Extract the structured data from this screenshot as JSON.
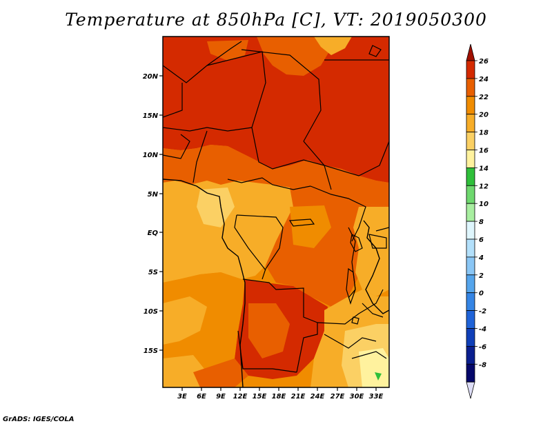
{
  "title": "Temperature at 850hPa [C], VT: 2019050300",
  "credit": "GrADS: IGES/COLA",
  "map": {
    "variable": "Temperature at 850hPa",
    "units": "C",
    "valid_time": "2019050300",
    "lat_labels": [
      "20N",
      "15N",
      "10N",
      "5N",
      "EQ",
      "5S",
      "10S",
      "15S"
    ],
    "lon_labels": [
      "3E",
      "6E",
      "9E",
      "12E",
      "15E",
      "18E",
      "21E",
      "24E",
      "27E",
      "30E",
      "33E"
    ]
  },
  "colorbar": {
    "levels": [
      "26",
      "24",
      "22",
      "20",
      "18",
      "16",
      "14",
      "12",
      "10",
      "8",
      "6",
      "4",
      "2",
      "0",
      "-2",
      "-4",
      "-6",
      "-8"
    ],
    "colors": [
      "#a01000",
      "#d42a00",
      "#e85f00",
      "#f08c00",
      "#f7ad28",
      "#fbd064",
      "#fff29e",
      "#2fbf3a",
      "#6ed86e",
      "#a8eea0",
      "#dff6fd",
      "#b3e0fb",
      "#8ac6f5",
      "#55a5ec",
      "#3585e5",
      "#1f63d8",
      "#0f3fb8",
      "#0a1f8f",
      "#05086a",
      "#ddddf6"
    ]
  }
}
